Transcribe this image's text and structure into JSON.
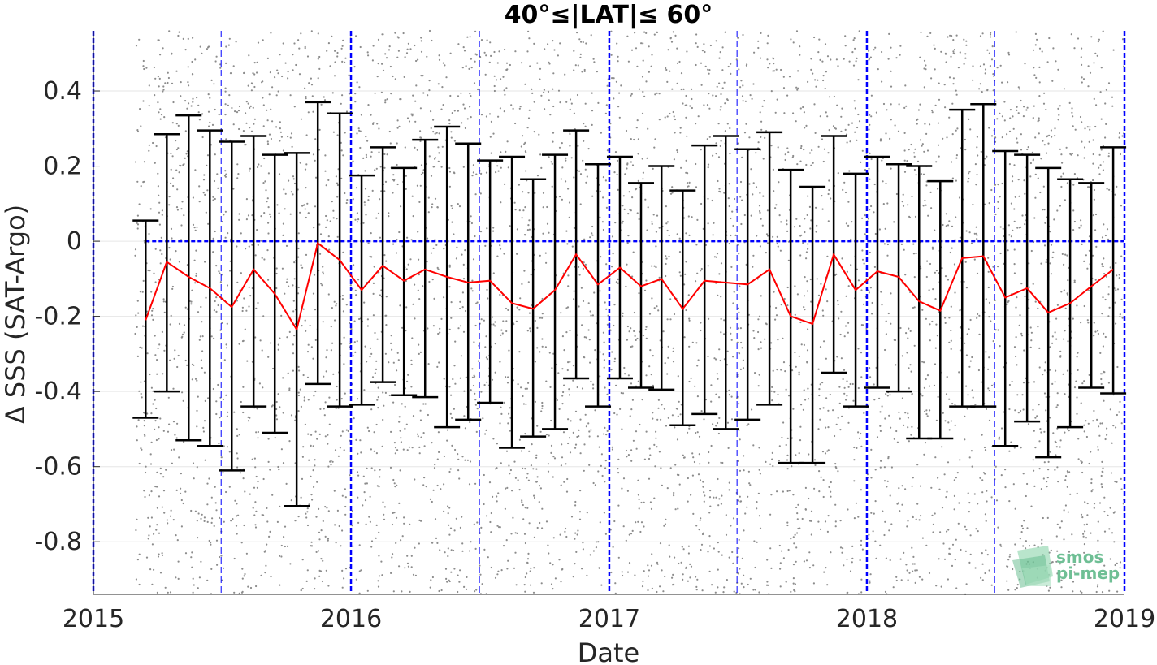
{
  "chart_data": {
    "type": "line",
    "title": "40°≤|LAT|≤ 60°",
    "xlabel": "Date",
    "ylabel": "Δ SSS (SAT-Argo)",
    "xlim": [
      "2015-01-01",
      "2019-01-01"
    ],
    "ylim": [
      -0.94,
      0.56
    ],
    "x_ticks": [
      "2015",
      "2016",
      "2017",
      "2018",
      "2019"
    ],
    "y_ticks": [
      "0.4",
      "0.2",
      "0",
      "-0.2",
      "-0.4",
      "-0.6",
      "-0.8"
    ],
    "grid": true,
    "reference_line": 0,
    "dates": [
      "2015-03-16",
      "2015-04-15",
      "2015-05-16",
      "2015-06-15",
      "2015-07-16",
      "2015-08-16",
      "2015-09-15",
      "2015-10-16",
      "2015-11-15",
      "2015-12-16",
      "2016-01-16",
      "2016-02-15",
      "2016-03-16",
      "2016-04-15",
      "2016-05-16",
      "2016-06-15",
      "2016-07-16",
      "2016-08-16",
      "2016-09-15",
      "2016-10-16",
      "2016-11-15",
      "2016-12-16",
      "2017-01-16",
      "2017-02-15",
      "2017-03-16",
      "2017-04-15",
      "2017-05-16",
      "2017-06-15",
      "2017-07-16",
      "2017-08-16",
      "2017-09-15",
      "2017-10-16",
      "2017-11-15",
      "2017-12-16",
      "2018-01-16",
      "2018-02-15",
      "2018-03-16",
      "2018-04-15",
      "2018-05-16",
      "2018-06-15",
      "2018-07-16",
      "2018-08-16",
      "2018-09-15",
      "2018-10-16",
      "2018-11-15",
      "2018-12-16"
    ],
    "series": [
      {
        "type": "line",
        "color": "#ff0000",
        "values": [
          -0.21,
          -0.055,
          -0.095,
          -0.125,
          -0.175,
          -0.075,
          -0.14,
          -0.235,
          -0.005,
          -0.05,
          -0.13,
          -0.065,
          -0.105,
          -0.075,
          -0.095,
          -0.11,
          -0.105,
          -0.165,
          -0.18,
          -0.13,
          -0.035,
          -0.115,
          -0.07,
          -0.12,
          -0.1,
          -0.18,
          -0.105,
          -0.11,
          -0.115,
          -0.075,
          -0.2,
          -0.22,
          -0.035,
          -0.13,
          -0.08,
          -0.095,
          -0.16,
          -0.185,
          -0.045,
          -0.04,
          -0.15,
          -0.125,
          -0.19,
          -0.165,
          -0.12,
          -0.075
        ]
      },
      {
        "type": "errorbar",
        "color": "#000000",
        "upper": [
          0.055,
          0.285,
          0.335,
          0.295,
          0.265,
          0.28,
          0.23,
          0.235,
          0.37,
          0.34,
          0.175,
          0.25,
          0.195,
          0.27,
          0.305,
          0.26,
          0.215,
          0.225,
          0.165,
          0.23,
          0.295,
          0.205,
          0.225,
          0.155,
          0.2,
          0.135,
          0.255,
          0.28,
          0.245,
          0.29,
          0.19,
          0.145,
          0.28,
          0.18,
          0.225,
          0.205,
          0.2,
          0.16,
          0.35,
          0.365,
          0.24,
          0.23,
          0.195,
          0.165,
          0.155,
          0.25
        ],
        "lower": [
          -0.47,
          -0.4,
          -0.53,
          -0.545,
          -0.61,
          -0.44,
          -0.51,
          -0.705,
          -0.38,
          -0.44,
          -0.435,
          -0.375,
          -0.41,
          -0.415,
          -0.495,
          -0.475,
          -0.43,
          -0.55,
          -0.52,
          -0.5,
          -0.365,
          -0.44,
          -0.365,
          -0.39,
          -0.395,
          -0.49,
          -0.46,
          -0.5,
          -0.475,
          -0.435,
          -0.59,
          -0.59,
          -0.35,
          -0.44,
          -0.39,
          -0.4,
          -0.525,
          -0.525,
          -0.44,
          -0.44,
          -0.545,
          -0.48,
          -0.575,
          -0.495,
          -0.39,
          -0.405
        ]
      }
    ],
    "scatter": {
      "color": "#8c8c8c",
      "description_free": true,
      "count": 5200
    },
    "vlines_year": [
      "2015-01-01",
      "2016-01-01",
      "2017-01-01",
      "2018-01-01",
      "2019-01-01"
    ],
    "vlines_halfyear": [
      "2015-07-01",
      "2016-07-01",
      "2017-07-01",
      "2018-07-01"
    ],
    "colors": {
      "mean_line": "#ff0000",
      "error_bars": "#000000",
      "vlines": "#0000ff",
      "zero_line": "#0000ff",
      "points": "#8c8c8c",
      "logo": "#6fbf95"
    }
  },
  "logo": {
    "line1": "smos",
    "line2": "pi-mep"
  }
}
